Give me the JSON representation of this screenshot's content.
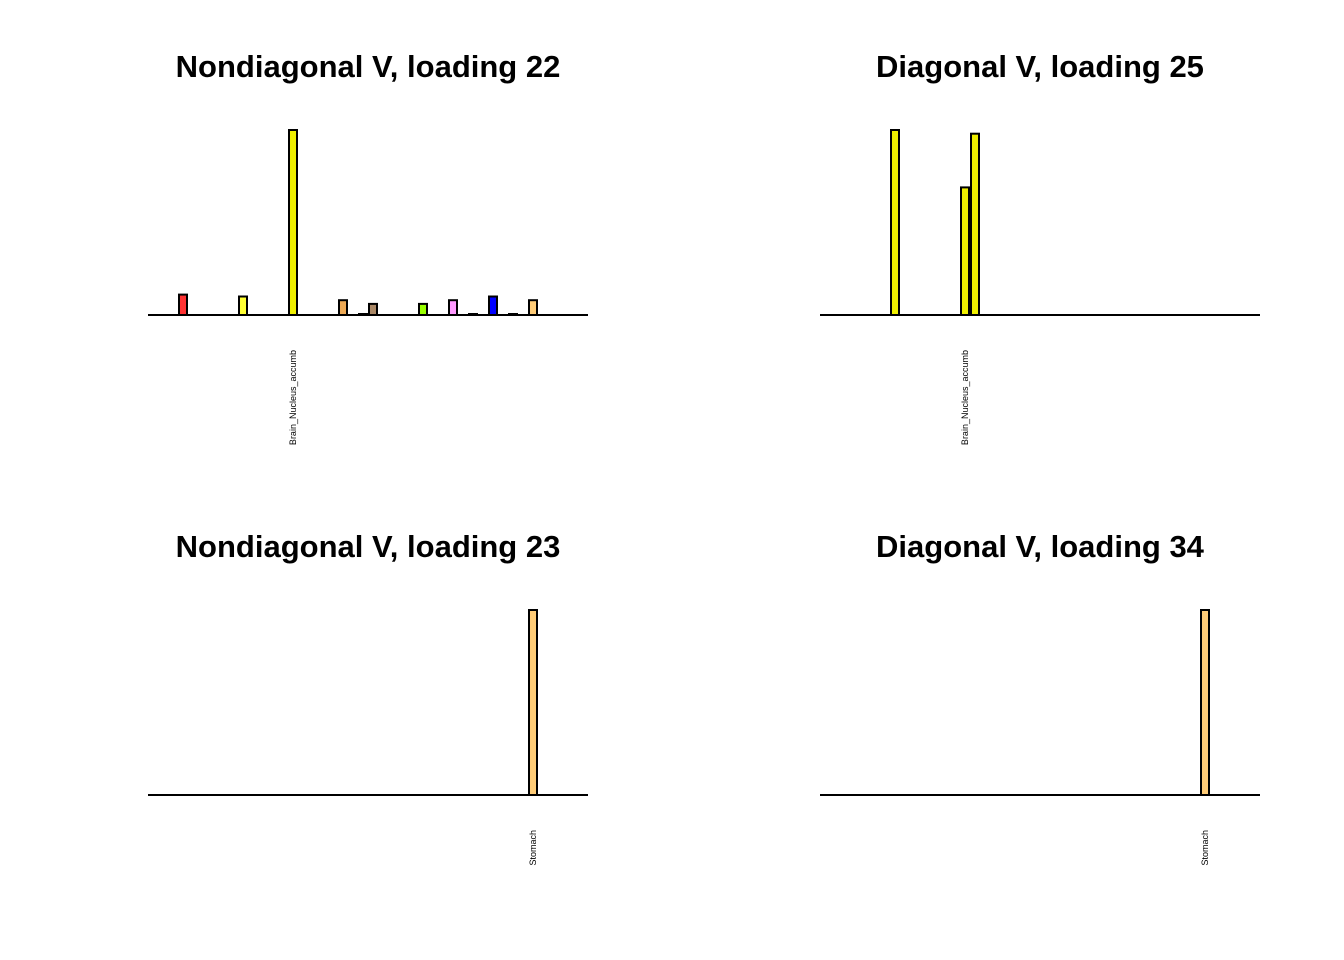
{
  "chart_data": [
    {
      "type": "bar",
      "title": "Nondiagonal V, loading 22",
      "xlabel": "",
      "ylabel": "",
      "grid": false,
      "n_bars": 44,
      "ylim": [
        0,
        1
      ],
      "labeled_ticks": [
        {
          "index": 14,
          "label": "Brain_Nucleus_accumb"
        }
      ],
      "bars": [
        {
          "index": 3,
          "value": 0.11,
          "color": "#ff3333"
        },
        {
          "index": 9,
          "value": 0.1,
          "color": "#ffff33"
        },
        {
          "index": 14,
          "value": 1.0,
          "color": "#eeee00"
        },
        {
          "index": 19,
          "value": 0.08,
          "color": "#eeaa55"
        },
        {
          "index": 21,
          "value": 0.005,
          "color": "#999999"
        },
        {
          "index": 22,
          "value": 0.06,
          "color": "#aa8866"
        },
        {
          "index": 27,
          "value": 0.06,
          "color": "#99ff00"
        },
        {
          "index": 30,
          "value": 0.08,
          "color": "#ff99ff"
        },
        {
          "index": 32,
          "value": 0.005,
          "color": "#999999"
        },
        {
          "index": 34,
          "value": 0.1,
          "color": "#0000ff"
        },
        {
          "index": 36,
          "value": 0.005,
          "color": "#999999"
        },
        {
          "index": 38,
          "value": 0.08,
          "color": "#ffcc77"
        }
      ]
    },
    {
      "type": "bar",
      "title": "Diagonal V, loading 25",
      "xlabel": "",
      "ylabel": "",
      "grid": false,
      "n_bars": 44,
      "ylim": [
        0,
        1
      ],
      "labeled_ticks": [
        {
          "index": 14,
          "label": "Brain_Nucleus_accumb"
        }
      ],
      "bars": [
        {
          "index": 7,
          "value": 1.0,
          "color": "#eeee00"
        },
        {
          "index": 14,
          "value": 0.69,
          "color": "#eeee00"
        },
        {
          "index": 15,
          "value": 0.98,
          "color": "#eeee00"
        }
      ]
    },
    {
      "type": "bar",
      "title": "Nondiagonal V, loading 23",
      "xlabel": "",
      "ylabel": "",
      "grid": false,
      "n_bars": 44,
      "ylim": [
        0,
        1
      ],
      "labeled_ticks": [
        {
          "index": 38,
          "label": "Stomach"
        }
      ],
      "bars": [
        {
          "index": 38,
          "value": 1.0,
          "color": "#ffcc77"
        }
      ]
    },
    {
      "type": "bar",
      "title": "Diagonal V, loading 34",
      "xlabel": "",
      "ylabel": "",
      "grid": false,
      "n_bars": 44,
      "ylim": [
        0,
        1
      ],
      "labeled_ticks": [
        {
          "index": 38,
          "label": "Stomach"
        }
      ],
      "bars": [
        {
          "index": 38,
          "value": 1.0,
          "color": "#ffcc77"
        }
      ]
    }
  ]
}
